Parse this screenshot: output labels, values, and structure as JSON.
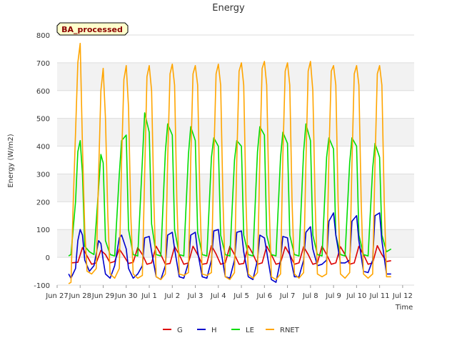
{
  "chart_data": {
    "type": "line",
    "title": "Energy",
    "xlabel": "Time",
    "ylabel": "Energy (W/m2)",
    "badge": "BA_processed",
    "ylim": [
      -100,
      800
    ],
    "yticks": [
      -100,
      0,
      100,
      200,
      300,
      400,
      500,
      600,
      700,
      800
    ],
    "xlim": [
      0,
      15.5
    ],
    "xticks": [
      {
        "x": 0,
        "label": "Jun 27"
      },
      {
        "x": 1,
        "label": "Jun 28"
      },
      {
        "x": 2,
        "label": "Jun 29"
      },
      {
        "x": 3,
        "label": "Jun 30"
      },
      {
        "x": 4,
        "label": "Jul 1"
      },
      {
        "x": 5,
        "label": "Jul 2"
      },
      {
        "x": 6,
        "label": "Jul 3"
      },
      {
        "x": 7,
        "label": "Jul 4"
      },
      {
        "x": 8,
        "label": "Jul 5"
      },
      {
        "x": 9,
        "label": "Jul 6"
      },
      {
        "x": 10,
        "label": "Jul 7"
      },
      {
        "x": 11,
        "label": "Jul 8"
      },
      {
        "x": 12,
        "label": "Jul 9"
      },
      {
        "x": 13,
        "label": "Jul 10"
      },
      {
        "x": 14,
        "label": "Jul 11"
      },
      {
        "x": 15,
        "label": "Jul 12"
      }
    ],
    "grid": "horizontal bands",
    "legend_position": "bottom",
    "series": [
      {
        "name": "G",
        "color": "#dd0000",
        "x": [
          0.6,
          0.9,
          1.1,
          1.3,
          1.5,
          1.7,
          1.9,
          2.1,
          2.3,
          2.5,
          2.7,
          2.9,
          3.1,
          3.3,
          3.5,
          3.7,
          3.9,
          4.1,
          4.3,
          4.5,
          4.7,
          4.9,
          5.1,
          5.3,
          5.5,
          5.7,
          5.9,
          6.1,
          6.3,
          6.5,
          6.7,
          6.9,
          7.1,
          7.3,
          7.5,
          7.7,
          7.9,
          8.1,
          8.3,
          8.5,
          8.7,
          8.9,
          9.1,
          9.3,
          9.5,
          9.7,
          9.9,
          10.1,
          10.3,
          10.5,
          10.7,
          10.9,
          11.1,
          11.3,
          11.5,
          11.7,
          11.9,
          12.1,
          12.3,
          12.5,
          12.7,
          12.9,
          13.1,
          13.3,
          13.5,
          13.7,
          13.9,
          14.1,
          14.3,
          14.5
        ],
        "y": [
          -20,
          -18,
          35,
          5,
          -25,
          -20,
          25,
          10,
          -20,
          -15,
          30,
          5,
          -22,
          -18,
          35,
          10,
          -25,
          -20,
          40,
          10,
          -25,
          -22,
          38,
          10,
          -25,
          -20,
          40,
          10,
          -25,
          -22,
          42,
          12,
          -25,
          -20,
          40,
          10,
          -25,
          -22,
          42,
          12,
          -25,
          -20,
          40,
          10,
          -25,
          -20,
          38,
          10,
          -25,
          -20,
          38,
          10,
          -25,
          -20,
          40,
          10,
          -25,
          -20,
          38,
          10,
          -25,
          -20,
          40,
          10,
          -25,
          -20,
          42,
          10,
          -15,
          -12
        ]
      },
      {
        "name": "H",
        "color": "#0000cc",
        "x": [
          0.5,
          0.6,
          0.8,
          0.9,
          1.0,
          1.1,
          1.2,
          1.4,
          1.6,
          1.8,
          1.9,
          2.0,
          2.1,
          2.3,
          2.5,
          2.7,
          2.8,
          3.0,
          3.1,
          3.3,
          3.5,
          3.7,
          3.8,
          4.0,
          4.1,
          4.3,
          4.5,
          4.7,
          4.8,
          5.0,
          5.1,
          5.3,
          5.5,
          5.7,
          5.8,
          6.0,
          6.1,
          6.3,
          6.5,
          6.7,
          6.8,
          7.0,
          7.1,
          7.3,
          7.5,
          7.7,
          7.8,
          8.0,
          8.1,
          8.3,
          8.5,
          8.7,
          8.8,
          9.0,
          9.1,
          9.3,
          9.5,
          9.7,
          9.8,
          10.0,
          10.1,
          10.3,
          10.5,
          10.7,
          10.8,
          11.0,
          11.1,
          11.3,
          11.5,
          11.7,
          11.8,
          12.0,
          12.1,
          12.3,
          12.5,
          12.7,
          12.8,
          13.0,
          13.1,
          13.3,
          13.5,
          13.7,
          13.8,
          14.0,
          14.1,
          14.3,
          14.5
        ],
        "y": [
          -60,
          -75,
          -40,
          60,
          100,
          80,
          -10,
          -50,
          -30,
          60,
          50,
          -10,
          -60,
          -75,
          -30,
          70,
          80,
          30,
          -40,
          -75,
          -60,
          -30,
          70,
          75,
          20,
          -70,
          -80,
          -30,
          80,
          90,
          30,
          -70,
          -75,
          -20,
          80,
          90,
          20,
          -70,
          -75,
          -10,
          95,
          100,
          30,
          -70,
          -75,
          -10,
          90,
          95,
          20,
          -70,
          -80,
          -10,
          80,
          70,
          20,
          -80,
          -90,
          -10,
          75,
          70,
          10,
          -70,
          -70,
          -10,
          90,
          110,
          30,
          -30,
          -25,
          -10,
          130,
          160,
          80,
          -20,
          -20,
          -10,
          130,
          150,
          60,
          -50,
          -55,
          -10,
          150,
          160,
          60,
          -60,
          -60
        ]
      },
      {
        "name": "LE",
        "color": "#00dd00",
        "x": [
          0.5,
          0.6,
          0.8,
          0.9,
          1.0,
          1.1,
          1.2,
          1.4,
          1.6,
          1.8,
          1.9,
          2.0,
          2.1,
          2.3,
          2.5,
          2.7,
          2.8,
          3.0,
          3.1,
          3.3,
          3.5,
          3.7,
          3.8,
          4.0,
          4.1,
          4.3,
          4.5,
          4.7,
          4.8,
          5.0,
          5.1,
          5.3,
          5.5,
          5.7,
          5.8,
          6.0,
          6.1,
          6.3,
          6.5,
          6.7,
          6.8,
          7.0,
          7.1,
          7.3,
          7.5,
          7.7,
          7.8,
          8.0,
          8.1,
          8.3,
          8.5,
          8.7,
          8.8,
          9.0,
          9.1,
          9.3,
          9.5,
          9.7,
          9.8,
          10.0,
          10.1,
          10.3,
          10.5,
          10.7,
          10.8,
          11.0,
          11.1,
          11.3,
          11.5,
          11.7,
          11.8,
          12.0,
          12.1,
          12.3,
          12.5,
          12.7,
          12.8,
          13.0,
          13.1,
          13.3,
          13.5,
          13.7,
          13.8,
          14.0,
          14.1,
          14.3,
          14.5
        ],
        "y": [
          5,
          10,
          200,
          380,
          420,
          300,
          40,
          20,
          10,
          250,
          370,
          340,
          60,
          10,
          5,
          300,
          420,
          440,
          100,
          10,
          5,
          350,
          520,
          450,
          120,
          10,
          5,
          380,
          480,
          440,
          100,
          10,
          5,
          370,
          470,
          420,
          90,
          10,
          5,
          360,
          430,
          400,
          80,
          10,
          5,
          350,
          420,
          400,
          80,
          10,
          5,
          380,
          470,
          440,
          80,
          10,
          5,
          360,
          450,
          410,
          80,
          10,
          5,
          380,
          480,
          420,
          80,
          10,
          5,
          360,
          430,
          390,
          80,
          10,
          5,
          340,
          430,
          400,
          80,
          10,
          5,
          320,
          410,
          360,
          80,
          20,
          30
        ]
      },
      {
        "name": "RNET",
        "color": "#ffa500",
        "x": [
          0.5,
          0.6,
          0.7,
          0.8,
          0.9,
          1.0,
          1.1,
          1.2,
          1.3,
          1.5,
          1.7,
          1.8,
          1.9,
          2.0,
          2.1,
          2.2,
          2.3,
          2.5,
          2.7,
          2.8,
          2.9,
          3.0,
          3.1,
          3.2,
          3.3,
          3.5,
          3.7,
          3.8,
          3.9,
          4.0,
          4.1,
          4.2,
          4.3,
          4.5,
          4.7,
          4.8,
          4.9,
          5.0,
          5.1,
          5.2,
          5.3,
          5.5,
          5.7,
          5.8,
          5.9,
          6.0,
          6.1,
          6.2,
          6.3,
          6.5,
          6.7,
          6.8,
          6.9,
          7.0,
          7.1,
          7.2,
          7.3,
          7.5,
          7.7,
          7.8,
          7.9,
          8.0,
          8.1,
          8.2,
          8.3,
          8.5,
          8.7,
          8.8,
          8.9,
          9.0,
          9.1,
          9.2,
          9.3,
          9.5,
          9.7,
          9.8,
          9.9,
          10.0,
          10.1,
          10.2,
          10.3,
          10.5,
          10.7,
          10.8,
          10.9,
          11.0,
          11.1,
          11.2,
          11.3,
          11.5,
          11.7,
          11.8,
          11.9,
          12.0,
          12.1,
          12.2,
          12.3,
          12.5,
          12.7,
          12.8,
          12.9,
          13.0,
          13.1,
          13.2,
          13.3,
          13.5,
          13.7,
          13.8,
          13.9,
          14.0,
          14.1,
          14.2,
          14.3,
          14.5
        ],
        "y": [
          -95,
          -90,
          200,
          450,
          700,
          770,
          400,
          100,
          -50,
          -60,
          -40,
          300,
          600,
          680,
          500,
          150,
          -60,
          -75,
          -40,
          350,
          640,
          690,
          540,
          150,
          -60,
          -75,
          -65,
          300,
          650,
          690,
          600,
          200,
          -70,
          -80,
          -60,
          350,
          660,
          695,
          620,
          200,
          -60,
          -65,
          -55,
          350,
          660,
          690,
          620,
          200,
          -60,
          -65,
          -55,
          350,
          660,
          695,
          620,
          200,
          -70,
          -80,
          -55,
          350,
          670,
          700,
          620,
          200,
          -60,
          -75,
          -55,
          360,
          680,
          705,
          620,
          200,
          -70,
          -80,
          -60,
          360,
          670,
          700,
          620,
          200,
          -60,
          -75,
          -55,
          340,
          670,
          705,
          600,
          200,
          -60,
          -70,
          -60,
          360,
          670,
          690,
          620,
          200,
          -60,
          -75,
          -55,
          340,
          660,
          690,
          620,
          200,
          -60,
          -75,
          -60,
          340,
          660,
          690,
          620,
          200,
          -70,
          -70
        ]
      }
    ]
  }
}
